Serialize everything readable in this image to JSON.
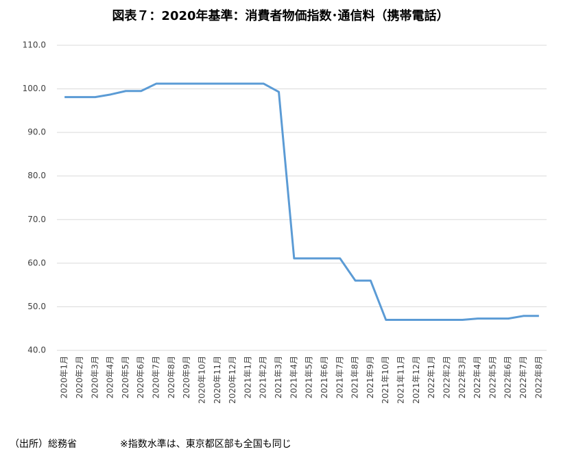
{
  "chart_data": {
    "type": "line",
    "title": "図表７：2020年基準：消費者物価指数･通信料（携帯電話）",
    "source": "（出所）総務省",
    "note": "※指数水準は、東京都区部も全国も同じ",
    "categories": [
      "2020年1月",
      "2020年2月",
      "2020年3月",
      "2020年4月",
      "2020年5月",
      "2020年6月",
      "2020年7月",
      "2020年8月",
      "2020年9月",
      "2020年10月",
      "2020年11月",
      "2020年12月",
      "2021年1月",
      "2021年2月",
      "2021年3月",
      "2021年4月",
      "2021年5月",
      "2021年6月",
      "2021年7月",
      "2021年8月",
      "2021年9月",
      "2021年10月",
      "2021年11月",
      "2021年12月",
      "2022年1月",
      "2022年2月",
      "2022年3月",
      "2022年4月",
      "2022年5月",
      "2022年6月",
      "2022年7月",
      "2022年8月"
    ],
    "values": [
      98.1,
      98.1,
      98.1,
      98.7,
      99.5,
      99.5,
      101.2,
      101.2,
      101.2,
      101.2,
      101.2,
      101.2,
      101.2,
      101.2,
      99.3,
      61.1,
      61.1,
      61.1,
      61.1,
      56.0,
      56.0,
      47.0,
      47.0,
      47.0,
      47.0,
      47.0,
      47.0,
      47.3,
      47.3,
      47.3,
      47.9,
      47.9
    ],
    "color": "#5b9bd5",
    "ylim": [
      40,
      110
    ],
    "yticks": [
      {
        "value": 40,
        "label": "40.0"
      },
      {
        "value": 50,
        "label": "50.0"
      },
      {
        "value": 60,
        "label": "60.0"
      },
      {
        "value": 70,
        "label": "70.0"
      },
      {
        "value": 80,
        "label": "80.0"
      },
      {
        "value": 90,
        "label": "90.0"
      },
      {
        "value": 100,
        "label": "100.0"
      },
      {
        "value": 110,
        "label": "110.0"
      }
    ],
    "grid": true
  }
}
